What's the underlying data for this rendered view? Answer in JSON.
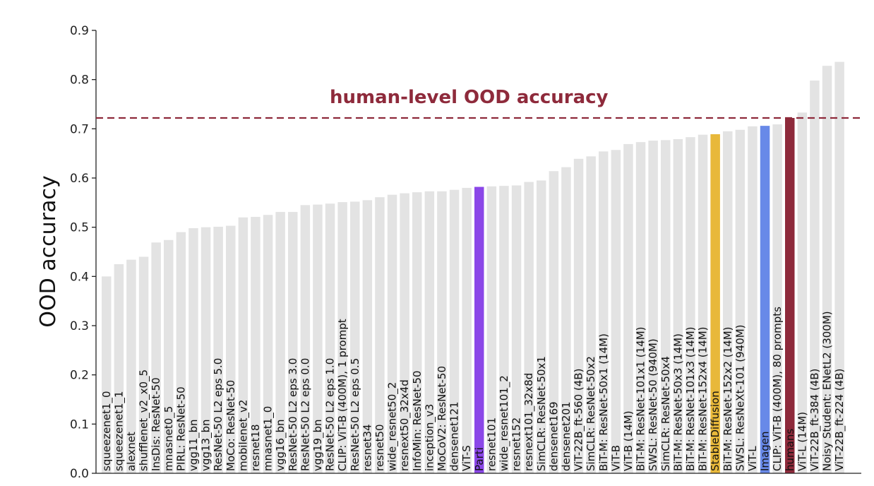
{
  "chart_data": {
    "type": "bar",
    "ylabel": "OOD accuracy",
    "ylim": [
      0,
      0.9
    ],
    "yticks": [
      "0.0",
      "0.1",
      "0.2",
      "0.3",
      "0.4",
      "0.5",
      "0.6",
      "0.7",
      "0.8",
      "0.9"
    ],
    "grid": false,
    "default_color": "#e3e3e3",
    "reference_line": {
      "label": "human-level OOD accuracy",
      "value": 0.722,
      "color": "#8e2a3b",
      "style": "dashed"
    },
    "categories": [
      "squeezenet1_0",
      "squeezenet1_1",
      "alexnet",
      "shufflenet_v2_x0_5",
      "InsDis: ResNet-50",
      "mnasnet0_5",
      "PIRL: ResNet-50",
      "vgg11_bn",
      "vgg13_bn",
      "ResNet-50 L2 eps 5.0",
      "MoCo: ResNet-50",
      "mobilenet_v2",
      "resnet18",
      "mnasnet1_0",
      "vgg16_bn",
      "ResNet-50 L2 eps 3.0",
      "ResNet-50 L2 eps 0.0",
      "vgg19_bn",
      "ResNet-50 L2 eps 1.0",
      "CLIP: ViT-B (400M), 1 prompt",
      "ResNet-50 L2 eps 0.5",
      "resnet34",
      "resnet50",
      "wide_resnet50_2",
      "resnext50_32x4d",
      "InfoMin: ResNet-50",
      "inception_v3",
      "MoCoV2: ResNet-50",
      "densenet121",
      "ViT-S",
      "Parti",
      "resnet101",
      "wide_resnet101_2",
      "resnet152",
      "resnext101_32x8d",
      "SimCLR: ResNet-50x1",
      "densenet169",
      "densenet201",
      "ViT-22B_ft-560 (4B)",
      "SimCLR: ResNet-50x2",
      "BiT-M: ResNet-50x1 (14M)",
      "ViT-B",
      "ViT-B (14M)",
      "BiT-M: ResNet-101x1 (14M)",
      "SWSL: ResNet-50 (940M)",
      "SimCLR: ResNet-50x4",
      "BiT-M: ResNet-50x3 (14M)",
      "BiT-M: ResNet-101x3 (14M)",
      "BiT-M: ResNet-152x4 (14M)",
      "StableDiffusion",
      "BiT-M: ResNet-152x2 (14M)",
      "SWSL: ResNeXt-101 (940M)",
      "ViT-L",
      "Imagen",
      "CLIP: ViT-B (400M), 80 prompts",
      "humans",
      "ViT-L (14M)",
      "ViT-22B_ft-384 (4B)",
      "Noisy Student: ENetL2 (300M)",
      "ViT-22B_ft-224 (4B)"
    ],
    "values": [
      0.4,
      0.425,
      0.434,
      0.44,
      0.469,
      0.474,
      0.49,
      0.498,
      0.5,
      0.501,
      0.503,
      0.52,
      0.521,
      0.525,
      0.531,
      0.531,
      0.545,
      0.546,
      0.548,
      0.551,
      0.552,
      0.555,
      0.561,
      0.566,
      0.569,
      0.571,
      0.573,
      0.573,
      0.576,
      0.58,
      0.582,
      0.583,
      0.584,
      0.585,
      0.592,
      0.595,
      0.614,
      0.622,
      0.639,
      0.644,
      0.654,
      0.657,
      0.669,
      0.673,
      0.676,
      0.677,
      0.679,
      0.683,
      0.688,
      0.689,
      0.695,
      0.698,
      0.705,
      0.706,
      0.709,
      0.722,
      0.733,
      0.798,
      0.828,
      0.836
    ],
    "highlights": [
      {
        "category": "Parti",
        "color": "#8b47e8"
      },
      {
        "category": "StableDiffusion",
        "color": "#e8b83a"
      },
      {
        "category": "Imagen",
        "color": "#6889e8"
      },
      {
        "category": "humans",
        "color": "#8e2a3b"
      }
    ]
  }
}
